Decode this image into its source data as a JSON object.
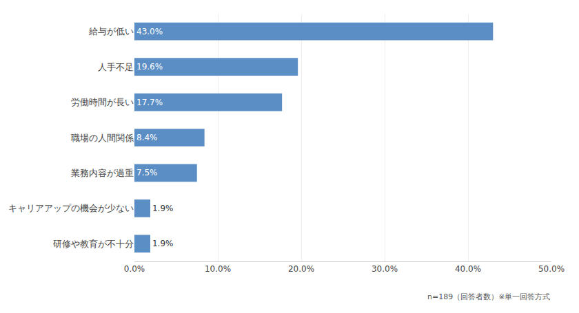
{
  "chart_data": {
    "type": "bar",
    "orientation": "horizontal",
    "categories": [
      "研修や教育が不十分",
      "キャリアアップの機会が少ない",
      "業務内容が過重",
      "職場の人間関係",
      "労働時間が長い",
      "人手不足",
      "給与が低い"
    ],
    "values": [
      1.9,
      1.9,
      7.5,
      8.4,
      17.7,
      19.6,
      43.0
    ],
    "value_labels": [
      "1.9%",
      "1.9%",
      "7.5%",
      "8.4%",
      "17.7%",
      "19.6%",
      "43.0%"
    ],
    "data_labels": true,
    "color": "#5b8ec4",
    "xlim": [
      0,
      50
    ],
    "xticks": [
      {
        "value": 0,
        "label": "0.0%"
      },
      {
        "value": 10,
        "label": "10.0%"
      },
      {
        "value": 20,
        "label": "20.0%"
      },
      {
        "value": 30,
        "label": "30.0%"
      },
      {
        "value": 40,
        "label": "40.0%"
      },
      {
        "value": 50,
        "label": "50.0%"
      }
    ],
    "grid": true,
    "annotations": [
      "n=189（回答者数）※単一回答方式"
    ]
  }
}
